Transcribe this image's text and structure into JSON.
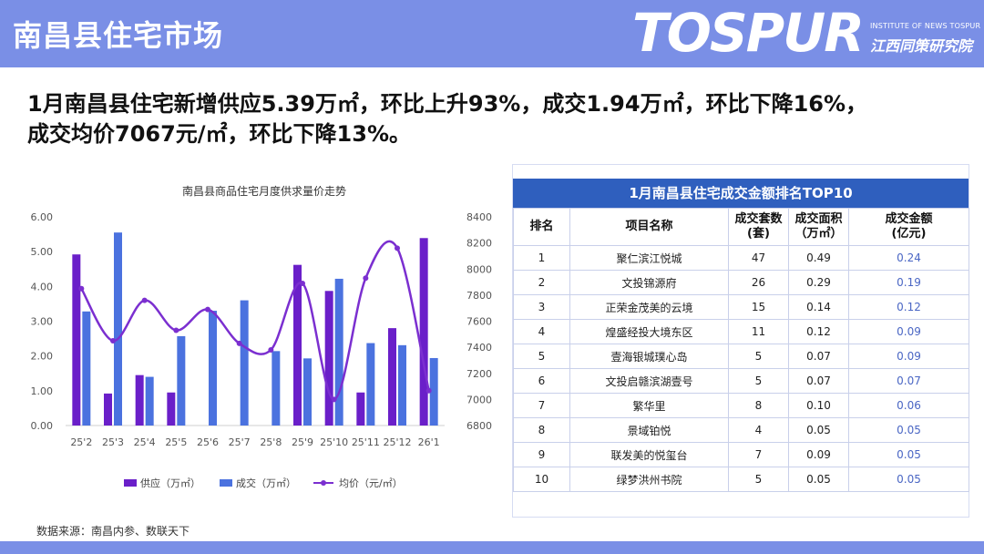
{
  "header": {
    "title": "南昌县住宅市场",
    "logo_main": "TOSPUR",
    "logo_sub1": "INSTITUTE OF NEWS TOSPUR",
    "logo_sub2": "江西同策研究院"
  },
  "headline": {
    "line1": "1月南昌县住宅新增供应5.39万㎡，环比上升93%，成交1.94万㎡，环比下降16%，",
    "line2": "成交均价7067元/㎡，环比下降13%。"
  },
  "chart_data": {
    "type": "bar",
    "title": "南昌县商品住宅月度供求量价走势",
    "categories": [
      "25'2",
      "25'3",
      "25'4",
      "25'5",
      "25'6",
      "25'7",
      "25'8",
      "25'9",
      "25'10",
      "25'11",
      "25'12",
      "26'1"
    ],
    "series": [
      {
        "name": "供应（万㎡）",
        "type": "bar",
        "axis": "left",
        "color": "#6a1fc9",
        "values": [
          4.92,
          0.92,
          1.45,
          0.95,
          0,
          0,
          0,
          4.62,
          3.87,
          0.95,
          2.8,
          5.39
        ]
      },
      {
        "name": "成交（万㎡）",
        "type": "bar",
        "axis": "left",
        "color": "#4b72df",
        "values": [
          3.28,
          5.55,
          1.4,
          2.57,
          3.3,
          3.6,
          2.14,
          1.93,
          4.22,
          2.37,
          2.31,
          1.94
        ]
      },
      {
        "name": "均价（元/㎡）",
        "type": "line",
        "axis": "right",
        "color": "#7b2fd0",
        "values": [
          7850,
          7450,
          7760,
          7530,
          7690,
          7430,
          7380,
          7890,
          7000,
          7930,
          8160,
          7067
        ]
      }
    ],
    "ylim": [
      0,
      6
    ],
    "yticks": [
      "0.00",
      "1.00",
      "2.00",
      "3.00",
      "4.00",
      "5.00",
      "6.00"
    ],
    "y2lim": [
      6800,
      8400
    ],
    "y2ticks": [
      "6800",
      "7000",
      "7200",
      "7400",
      "7600",
      "7800",
      "8000",
      "8200",
      "8400"
    ],
    "legend_position": "bottom",
    "grid": false
  },
  "source": "数据来源：南昌内参、数联天下",
  "table": {
    "title": "1月南昌县住宅成交金额排名TOP10",
    "headers": [
      "排名",
      "项目名称",
      "成交套数\n(套)",
      "成交面积\n（万㎡）",
      "成交金额\n(亿元)"
    ],
    "rows": [
      [
        "1",
        "聚仁滨江悦城",
        "47",
        "0.49",
        "0.24"
      ],
      [
        "2",
        "文投锦源府",
        "26",
        "0.29",
        "0.19"
      ],
      [
        "3",
        "正荣金茂美的云境",
        "15",
        "0.14",
        "0.12"
      ],
      [
        "4",
        "煌盛经投大境东区",
        "11",
        "0.12",
        "0.09"
      ],
      [
        "5",
        "壹海银城璞心岛",
        "5",
        "0.07",
        "0.09"
      ],
      [
        "6",
        "文投启赣滨湖壹号",
        "5",
        "0.07",
        "0.07"
      ],
      [
        "7",
        "繁华里",
        "8",
        "0.10",
        "0.06"
      ],
      [
        "8",
        "景域铂悦",
        "4",
        "0.05",
        "0.05"
      ],
      [
        "9",
        "联发美的悦玺台",
        "7",
        "0.09",
        "0.05"
      ],
      [
        "10",
        "绿梦洪州书院",
        "5",
        "0.05",
        "0.05"
      ]
    ]
  }
}
